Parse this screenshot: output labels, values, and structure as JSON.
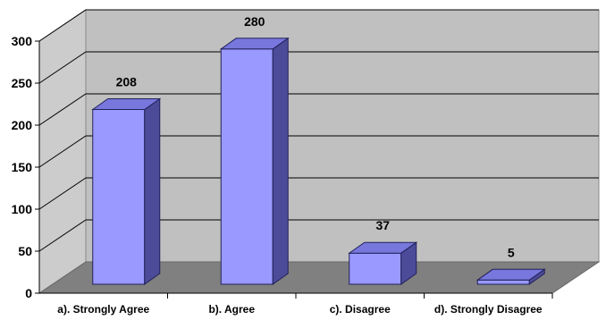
{
  "chart_data": {
    "type": "bar",
    "style": "3d-column",
    "categories": [
      "a). Strongly Agree",
      "b). Agree",
      "c). Disagree",
      "d). Strongly Disagree"
    ],
    "values": [
      208,
      280,
      37,
      5
    ],
    "ylim": [
      0,
      300
    ],
    "yticks": [
      0,
      50,
      100,
      150,
      200,
      250,
      300
    ],
    "grid": true,
    "data_labels": true,
    "colors": {
      "bar_front": "#9999ff",
      "bar_top": "#7777dd",
      "bar_side": "#4b4b99",
      "back_wall": "#c0c0c0",
      "side_wall": "#cccccc",
      "floor": "#808080",
      "gridline": "#000000"
    }
  }
}
